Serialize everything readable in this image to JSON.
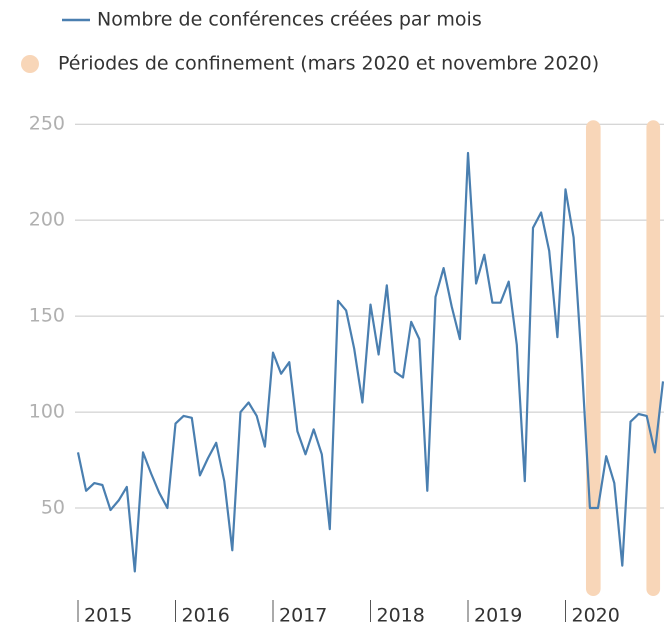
{
  "chart_data": {
    "type": "line",
    "series": [
      {
        "name": "Nombre de conférences créées par mois",
        "color": "#4a7fb0",
        "values": [
          79,
          59,
          63,
          62,
          49,
          54,
          61,
          17,
          79,
          68,
          58,
          50,
          94,
          98,
          97,
          67,
          76,
          84,
          64,
          28,
          100,
          105,
          98,
          82,
          131,
          120,
          126,
          90,
          78,
          91,
          78,
          39,
          158,
          153,
          133,
          105,
          156,
          130,
          166,
          121,
          118,
          147,
          138,
          59,
          160,
          175,
          155,
          138,
          235,
          167,
          182,
          157,
          157,
          168,
          135,
          64,
          196,
          204,
          184,
          139,
          216,
          191,
          125,
          50,
          50,
          77,
          63,
          20,
          95,
          99,
          98,
          79,
          116
        ]
      }
    ],
    "x": [
      2015,
      2015.083,
      2015.167,
      2015.25,
      2015.333,
      2015.417,
      2015.5,
      2015.583,
      2015.667,
      2015.75,
      2015.833,
      2015.917,
      2016,
      2016.083,
      2016.167,
      2016.25,
      2016.333,
      2016.417,
      2016.5,
      2016.583,
      2016.667,
      2016.75,
      2016.833,
      2016.917,
      2017,
      2017.083,
      2017.167,
      2017.25,
      2017.333,
      2017.417,
      2017.5,
      2017.583,
      2017.667,
      2017.75,
      2017.833,
      2017.917,
      2018,
      2018.083,
      2018.167,
      2018.25,
      2018.333,
      2018.417,
      2018.5,
      2018.583,
      2018.667,
      2018.75,
      2018.833,
      2018.917,
      2019,
      2019.083,
      2019.167,
      2019.25,
      2019.333,
      2019.417,
      2019.5,
      2019.583,
      2019.667,
      2019.75,
      2019.833,
      2019.917,
      2020,
      2020.083,
      2020.167,
      2020.25,
      2020.333,
      2020.417,
      2020.5,
      2020.583,
      2020.667,
      2020.75,
      2020.833,
      2020.917,
      2021
    ],
    "bands_label": "Périodes de confinement (mars 2020 et novembre 2020)",
    "bands_color": "#f8d6b8",
    "bands": [
      [
        2020.21,
        2020.36
      ],
      [
        2020.83,
        2020.97
      ]
    ],
    "xlim": [
      2015,
      2021
    ],
    "xticks": [
      2015,
      2016,
      2017,
      2018,
      2019,
      2020
    ],
    "ylim": [
      0,
      260
    ],
    "yticks": [
      50,
      100,
      150,
      200,
      250
    ],
    "grid": true
  }
}
